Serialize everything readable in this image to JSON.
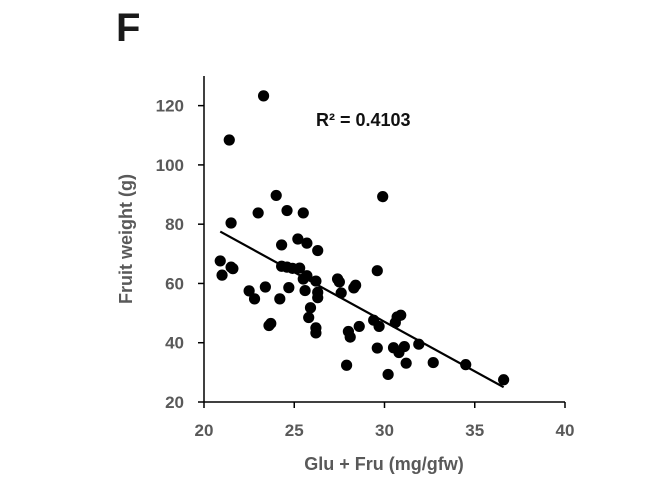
{
  "panel_label": "F",
  "chart_data": {
    "type": "scatter",
    "title": "",
    "xlabel": "Glu + Fru (mg/gfw)",
    "ylabel": "Fruit weight (g)",
    "xlim": [
      20,
      40
    ],
    "ylim": [
      20,
      130
    ],
    "xticks": [
      20,
      25,
      30,
      35,
      40
    ],
    "yticks": [
      20,
      40,
      60,
      80,
      100,
      120
    ],
    "grid": false,
    "legend": "none",
    "annotation": "R² = 0.4103",
    "marker_color": "#000000",
    "trendline": {
      "type": "linear",
      "x": [
        20.9,
        36.6
      ],
      "y": [
        77.5,
        25.0
      ]
    },
    "points": [
      {
        "x": 23.3,
        "y": 123.3
      },
      {
        "x": 21.4,
        "y": 108.4
      },
      {
        "x": 24.0,
        "y": 89.7
      },
      {
        "x": 29.9,
        "y": 89.3
      },
      {
        "x": 24.6,
        "y": 84.6
      },
      {
        "x": 25.5,
        "y": 83.8
      },
      {
        "x": 23.0,
        "y": 83.8
      },
      {
        "x": 21.5,
        "y": 80.4
      },
      {
        "x": 25.2,
        "y": 75.0
      },
      {
        "x": 25.7,
        "y": 73.6
      },
      {
        "x": 24.3,
        "y": 73.0
      },
      {
        "x": 26.3,
        "y": 71.1
      },
      {
        "x": 20.9,
        "y": 67.6
      },
      {
        "x": 21.5,
        "y": 65.5
      },
      {
        "x": 21.6,
        "y": 65.0
      },
      {
        "x": 24.3,
        "y": 65.8
      },
      {
        "x": 24.6,
        "y": 65.5
      },
      {
        "x": 24.9,
        "y": 65.1
      },
      {
        "x": 25.3,
        "y": 65.2
      },
      {
        "x": 29.6,
        "y": 64.3
      },
      {
        "x": 21.0,
        "y": 62.8
      },
      {
        "x": 25.7,
        "y": 62.6
      },
      {
        "x": 25.5,
        "y": 61.5
      },
      {
        "x": 26.2,
        "y": 60.8
      },
      {
        "x": 27.4,
        "y": 61.5
      },
      {
        "x": 27.5,
        "y": 60.5
      },
      {
        "x": 23.4,
        "y": 58.8
      },
      {
        "x": 24.7,
        "y": 58.6
      },
      {
        "x": 22.5,
        "y": 57.5
      },
      {
        "x": 25.6,
        "y": 57.6
      },
      {
        "x": 26.3,
        "y": 57.0
      },
      {
        "x": 28.3,
        "y": 58.5
      },
      {
        "x": 28.4,
        "y": 59.4
      },
      {
        "x": 27.6,
        "y": 56.8
      },
      {
        "x": 22.8,
        "y": 54.8
      },
      {
        "x": 24.2,
        "y": 54.8
      },
      {
        "x": 26.3,
        "y": 55.2
      },
      {
        "x": 25.9,
        "y": 51.8
      },
      {
        "x": 25.8,
        "y": 48.5
      },
      {
        "x": 29.4,
        "y": 47.6
      },
      {
        "x": 30.9,
        "y": 49.3
      },
      {
        "x": 30.7,
        "y": 48.7
      },
      {
        "x": 30.6,
        "y": 46.8
      },
      {
        "x": 29.7,
        "y": 45.5
      },
      {
        "x": 23.7,
        "y": 46.5
      },
      {
        "x": 23.6,
        "y": 45.8
      },
      {
        "x": 28.6,
        "y": 45.5
      },
      {
        "x": 26.2,
        "y": 45.0
      },
      {
        "x": 26.2,
        "y": 43.3
      },
      {
        "x": 28.0,
        "y": 43.8
      },
      {
        "x": 28.1,
        "y": 41.9
      },
      {
        "x": 31.9,
        "y": 39.5
      },
      {
        "x": 31.1,
        "y": 38.7
      },
      {
        "x": 29.6,
        "y": 38.2
      },
      {
        "x": 30.5,
        "y": 38.3
      },
      {
        "x": 30.8,
        "y": 36.7
      },
      {
        "x": 27.9,
        "y": 32.4
      },
      {
        "x": 31.2,
        "y": 33.1
      },
      {
        "x": 32.7,
        "y": 33.3
      },
      {
        "x": 34.5,
        "y": 32.6
      },
      {
        "x": 30.2,
        "y": 29.3
      },
      {
        "x": 36.6,
        "y": 27.5
      }
    ]
  }
}
